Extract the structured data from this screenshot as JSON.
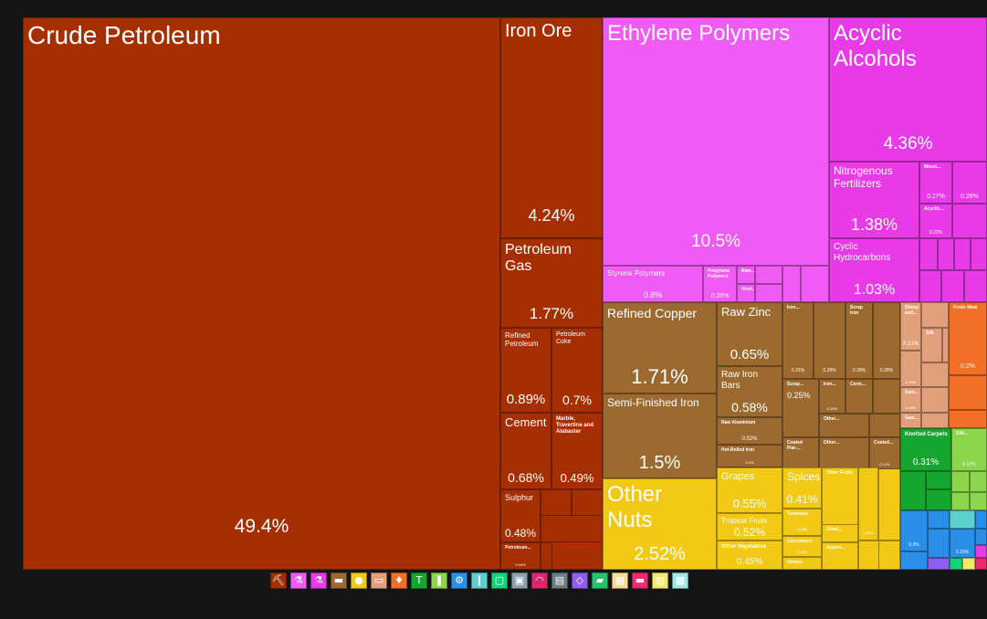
{
  "chart_data": {
    "type": "treemap",
    "tiles": [
      {
        "name": "Crude Petroleum",
        "value": 49.4,
        "value_label": "49.4%",
        "section": "Mineral Products",
        "color": "#a52f00"
      },
      {
        "name": "Iron Ore",
        "value": 4.24,
        "value_label": "4.24%",
        "section": "Mineral Products",
        "color": "#a52f00"
      },
      {
        "name": "Petroleum Gas",
        "value": 1.77,
        "value_label": "1.77%",
        "section": "Mineral Products",
        "color": "#a52f00"
      },
      {
        "name": "Refined Petroleum",
        "value": 0.89,
        "value_label": "0.89%",
        "section": "Mineral Products",
        "color": "#a52f00"
      },
      {
        "name": "Petroleum Coke",
        "value": 0.7,
        "value_label": "0.7%",
        "section": "Mineral Products",
        "color": "#a52f00"
      },
      {
        "name": "Cement",
        "value": 0.68,
        "value_label": "0.68%",
        "section": "Mineral Products",
        "color": "#a52f00"
      },
      {
        "name": "Marble, Travertine and Alabaster",
        "value": 0.49,
        "value_label": "0.49%",
        "section": "Mineral Products",
        "color": "#a52f00"
      },
      {
        "name": "Sulphur",
        "value": 0.48,
        "value_label": "0.48%",
        "section": "Mineral Products",
        "color": "#a52f00"
      },
      {
        "name": "Petroleum...",
        "value": 0.04,
        "value_label": "0.04%",
        "section": "Mineral Products",
        "color": "#a52f00"
      },
      {
        "name": "Ethylene Polymers",
        "value": 10.5,
        "value_label": "10.5%",
        "section": "Plastics and Rubbers",
        "color": "#f15bf5"
      },
      {
        "name": "Styrene Polymers",
        "value": 0.8,
        "value_label": "0.8%",
        "section": "Plastics and Rubbers",
        "color": "#f15bf5"
      },
      {
        "name": "Propylene Polymers",
        "value": 0.28,
        "value_label": "0.28%",
        "section": "Plastics and Rubbers",
        "color": "#f15bf5"
      },
      {
        "name": "Raw...",
        "value": null,
        "value_label": "",
        "section": "Plastics and Rubbers",
        "color": "#f15bf5"
      },
      {
        "name": "Vinyl...",
        "value": null,
        "value_label": "",
        "section": "Plastics and Rubbers",
        "color": "#f15bf5"
      },
      {
        "name": "Acyclic Alcohols",
        "value": 4.36,
        "value_label": "4.36%",
        "section": "Chemical Products",
        "color": "#e83be7"
      },
      {
        "name": "Nitrogenous Fertilizers",
        "value": 1.38,
        "value_label": "1.38%",
        "section": "Chemical Products",
        "color": "#e83be7"
      },
      {
        "name": "Cyclic Hydrocarbons",
        "value": 1.03,
        "value_label": "1.03%",
        "section": "Chemical Products",
        "color": "#e83be7"
      },
      {
        "name": "Mixed...",
        "value": 0.27,
        "value_label": "0.27%",
        "section": "Chemical Products",
        "color": "#e83be7"
      },
      {
        "name": "Acyclic...",
        "value": 0.22,
        "value_label": "0.22%",
        "section": "Chemical Products",
        "color": "#e83be7"
      },
      {
        "name": "",
        "value": 0.26,
        "value_label": "0.26%",
        "section": "Chemical Products",
        "color": "#e83be7"
      },
      {
        "name": "Refined Copper",
        "value": 1.71,
        "value_label": "1.71%",
        "section": "Metals",
        "color": "#9c6a2e"
      },
      {
        "name": "Semi-Finished Iron",
        "value": 1.5,
        "value_label": "1.5%",
        "section": "Metals",
        "color": "#9c6a2e"
      },
      {
        "name": "Raw Zinc",
        "value": 0.65,
        "value_label": "0.65%",
        "section": "Metals",
        "color": "#9c6a2e"
      },
      {
        "name": "Raw Iron Bars",
        "value": 0.58,
        "value_label": "0.58%",
        "section": "Metals",
        "color": "#9c6a2e"
      },
      {
        "name": "Raw Aluminium",
        "value": 0.52,
        "value_label": "0.52%",
        "section": "Metals",
        "color": "#9c6a2e"
      },
      {
        "name": "Hot-Rolled Iron",
        "value": 0.4,
        "value_label": "0.4%",
        "section": "Metals",
        "color": "#9c6a2e"
      },
      {
        "name": "Iron...",
        "value": 0.31,
        "value_label": "0.31%",
        "section": "Metals",
        "color": "#9c6a2e"
      },
      {
        "name": "Scrap...",
        "value": 0.25,
        "value_label": "0.25%",
        "section": "Metals",
        "color": "#9c6a2e"
      },
      {
        "name": "Scrap Iron",
        "value": 0.28,
        "value_label": "0.28%",
        "section": "Metals",
        "color": "#9c6a2e"
      },
      {
        "name": "",
        "value": 0.28,
        "value_label": "0.28%",
        "section": "Metals",
        "color": "#9c6a2e"
      },
      {
        "name": "",
        "value": 0.28,
        "value_label": "0.28%",
        "section": "Metals",
        "color": "#9c6a2e"
      },
      {
        "name": "Iron...",
        "value": 0.16,
        "value_label": "0.16%",
        "section": "Metals",
        "color": "#9c6a2e"
      },
      {
        "name": "Cerm...",
        "value": null,
        "value_label": "",
        "section": "Metals",
        "color": "#9c6a2e"
      },
      {
        "name": "Other...",
        "value": null,
        "value_label": "",
        "section": "Metals",
        "color": "#9c6a2e"
      },
      {
        "name": "Other...",
        "value": null,
        "value_label": "",
        "section": "Metals",
        "color": "#9c6a2e"
      },
      {
        "name": "Coated Flat-...",
        "value": null,
        "value_label": "",
        "section": "Metals",
        "color": "#9c6a2e"
      },
      {
        "name": "Coated...",
        "value": 0.13,
        "value_label": "0.13%",
        "section": "Metals",
        "color": "#9c6a2e"
      },
      {
        "name": "Other Nuts",
        "value": 2.52,
        "value_label": "2.52%",
        "section": "Vegetable Products",
        "color": "#f2ca15"
      },
      {
        "name": "Grapes",
        "value": 0.55,
        "value_label": "0.55%",
        "section": "Vegetable Products",
        "color": "#f2ca15"
      },
      {
        "name": "Spices",
        "value": 0.41,
        "value_label": "0.41%",
        "section": "Vegetable Products",
        "color": "#f2ca15"
      },
      {
        "name": "Other Fruits",
        "value": 0.37,
        "value_label": "0.37%",
        "section": "Vegetable Products",
        "color": "#f2ca15"
      },
      {
        "name": "Tropical Fruits",
        "value": 0.52,
        "value_label": "0.52%",
        "section": "Vegetable Products",
        "color": "#f2ca15"
      },
      {
        "name": "Other Vegetables",
        "value": 0.45,
        "value_label": "0.45%",
        "section": "Vegetable Products",
        "color": "#f2ca15"
      },
      {
        "name": "Tomatoes",
        "value": 0.2,
        "value_label": "0.2%",
        "section": "Vegetable Products",
        "color": "#f2ca15"
      },
      {
        "name": "Cucumbers",
        "value": 0.16,
        "value_label": "0.16%",
        "section": "Vegetable Products",
        "color": "#f2ca15"
      },
      {
        "name": "Onions",
        "value": null,
        "value_label": "",
        "section": "Vegetable Products",
        "color": "#f2ca15"
      },
      {
        "name": "Dried...",
        "value": null,
        "value_label": "",
        "section": "Vegetable Products",
        "color": "#f2ca15"
      },
      {
        "name": "Apples...",
        "value": null,
        "value_label": "",
        "section": "Vegetable Products",
        "color": "#f2ca15"
      },
      {
        "name": "",
        "value": 0.08,
        "value_label": "0.08%",
        "section": "Vegetable Products",
        "color": "#f2ca15"
      },
      {
        "name": "Sheep and...",
        "value": 0.21,
        "value_label": "0.21%",
        "section": "Animal Hides",
        "color": "#e2a07a"
      },
      {
        "name": "",
        "value": 0.19,
        "value_label": "0.19%",
        "section": "Animal Hides",
        "color": "#e2a07a"
      },
      {
        "name": "Silk",
        "value": null,
        "value_label": "",
        "section": "Animal Hides",
        "color": "#e2a07a"
      },
      {
        "name": "Sam...",
        "value": 0.13,
        "value_label": "0.13%",
        "section": "Animal Hides",
        "color": "#e2a07a"
      },
      {
        "name": "Sam...",
        "value": null,
        "value_label": "",
        "section": "Animal Hides",
        "color": "#e2a07a"
      },
      {
        "name": "Fresh Meat",
        "value": 0.2,
        "value_label": "0.2%",
        "section": "Animal Products",
        "color": "#f26f26"
      },
      {
        "name": "Knotted Carpets",
        "value": 0.31,
        "value_label": "0.31%",
        "section": "Textiles",
        "color": "#15a630"
      },
      {
        "name": "Silk...",
        "value": 0.17,
        "value_label": "0.17%",
        "section": "Textiles",
        "color": "#8bd64a"
      },
      {
        "name": "",
        "value": 0.2,
        "value_label": "0.2%",
        "section": "Machines",
        "color": "#2a8fe8"
      },
      {
        "name": "",
        "value": 0.15,
        "value_label": "0.15%",
        "section": "Machines",
        "color": "#2a8fe8"
      }
    ],
    "legend": [
      {
        "section": "Mineral Products",
        "icon": "pickaxe-icon",
        "glyph": "⛏",
        "color": "#a52f00"
      },
      {
        "section": "Plastics and Rubbers",
        "icon": "flask-icon",
        "glyph": "⚗",
        "color": "#f15bf5"
      },
      {
        "section": "Chemical Products",
        "icon": "beaker-icon",
        "glyph": "⚗",
        "color": "#e83be7"
      },
      {
        "section": "Metals",
        "icon": "ingot-icon",
        "glyph": "▬",
        "color": "#9c6a2e"
      },
      {
        "section": "Vegetable Products",
        "icon": "fruit-icon",
        "glyph": "●",
        "color": "#f2ca15"
      },
      {
        "section": "Animal Hides",
        "icon": "hide-icon",
        "glyph": "▭",
        "color": "#e2a07a"
      },
      {
        "section": "Animal Products",
        "icon": "animal-icon",
        "glyph": "♦",
        "color": "#f26f26"
      },
      {
        "section": "Textiles",
        "icon": "shirt-icon",
        "glyph": "T",
        "color": "#15a630"
      },
      {
        "section": "Vegetable Oils",
        "icon": "oil-drop-icon",
        "glyph": "❚",
        "color": "#8bd64a"
      },
      {
        "section": "Machines",
        "icon": "gear-icon",
        "glyph": "⚙",
        "color": "#2a8fe8"
      },
      {
        "section": "Stone and Glass",
        "icon": "glass-icon",
        "glyph": "❙",
        "color": "#5fd0d0"
      },
      {
        "section": "Paper Goods",
        "icon": "paper-icon",
        "glyph": "▢",
        "color": "#13d37b"
      },
      {
        "section": "Footwear and Headwear",
        "icon": "shoe-icon",
        "glyph": "▣",
        "color": "#8ea0ab"
      },
      {
        "section": "Instruments",
        "icon": "gauge-icon",
        "glyph": "◠",
        "color": "#e0266b"
      },
      {
        "section": "Miscellaneous",
        "icon": "chair-icon",
        "glyph": "▤",
        "color": "#6e7c85"
      },
      {
        "section": "Precious Metals",
        "icon": "diamond-icon",
        "glyph": "◇",
        "color": "#8f5df0"
      },
      {
        "section": "Transportation",
        "icon": "vehicle-icon",
        "glyph": "▰",
        "color": "#27c36d"
      },
      {
        "section": "Wood Products",
        "icon": "wood-icon",
        "glyph": "▦",
        "color": "#f5dd8e"
      },
      {
        "section": "Foodstuffs",
        "icon": "food-icon",
        "glyph": "▬",
        "color": "#ee2a6c"
      },
      {
        "section": "Weapons",
        "icon": "weapon-icon",
        "glyph": "▥",
        "color": "#f2e86a"
      },
      {
        "section": "Art and Antiques",
        "icon": "art-icon",
        "glyph": "▩",
        "color": "#9fe8e3"
      }
    ]
  }
}
